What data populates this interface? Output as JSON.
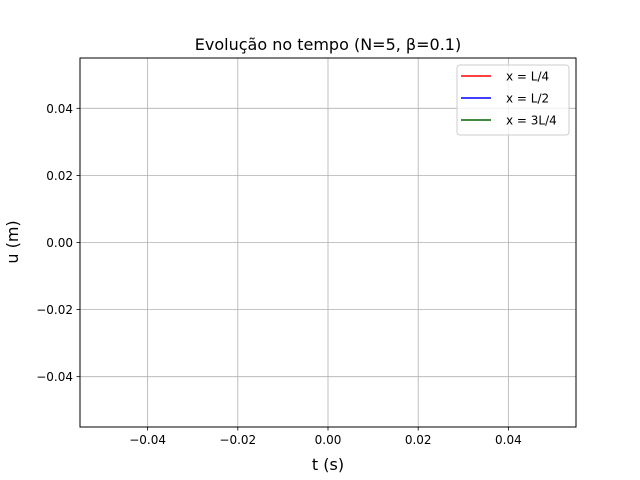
{
  "chart_data": {
    "type": "line",
    "title": "Evolução no tempo (N=5, β=0.1)",
    "xlabel": "t (s)",
    "ylabel": "u (m)",
    "xlim": [
      -0.055,
      0.055
    ],
    "ylim": [
      -0.055,
      0.055
    ],
    "xticks": [
      -0.04,
      -0.02,
      0.0,
      0.02,
      0.04
    ],
    "yticks": [
      -0.04,
      -0.02,
      0.0,
      0.02,
      0.04
    ],
    "xtick_labels": [
      "−0.04",
      "−0.02",
      "0.00",
      "0.02",
      "0.04"
    ],
    "ytick_labels": [
      "−0.04",
      "−0.02",
      "0.00",
      "0.02",
      "0.04"
    ],
    "grid": true,
    "legend_position": "top-right",
    "series": [
      {
        "name": "x = L/4",
        "color": "#ff0000",
        "x": [],
        "y": []
      },
      {
        "name": "x = L/2",
        "color": "#0000ff",
        "x": [],
        "y": []
      },
      {
        "name": "x = 3L/4",
        "color": "#006400",
        "x": [],
        "y": []
      }
    ]
  }
}
